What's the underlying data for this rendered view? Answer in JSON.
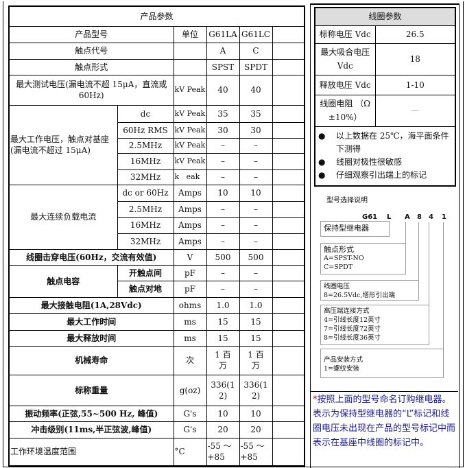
{
  "spec": {
    "title": "产品参数",
    "header": {
      "name": "产品型号",
      "unit": "单位",
      "models": [
        "G61LA",
        "G61LC"
      ]
    },
    "contact_code": {
      "label": "触点代号",
      "values": [
        "A",
        "C"
      ]
    },
    "contact_form": {
      "label": "触点形式",
      "values": [
        "SPST",
        "SPDT"
      ]
    },
    "max_test_voltage": {
      "label": "最大测试电压(漏电流不超 15μA，直流或 60Hz)",
      "unit": "kV Peak",
      "values": [
        "40",
        "40"
      ]
    },
    "max_working_voltage": {
      "label": "最大工作电压，触点对基座(漏电流不超过 15μA)",
      "rows": [
        {
          "cond": "dc",
          "unit": "kV Peak",
          "values": [
            "35",
            "35"
          ]
        },
        {
          "cond": "60Hz RMS",
          "unit": "kV Peak",
          "values": [
            "30",
            "30"
          ]
        },
        {
          "cond": "2.5MHz",
          "unit": "kV Peak",
          "values": [
            "–",
            "–"
          ]
        },
        {
          "cond": "16MHz",
          "unit": "kV Peak",
          "values": [
            "–",
            "–"
          ]
        },
        {
          "cond": "32MHz",
          "unit": "k   eak",
          "values": [
            "–",
            "–"
          ]
        }
      ]
    },
    "max_current": {
      "label": "最大连续负载电流",
      "rows": [
        {
          "cond": "dc or 60Hz",
          "unit": "Amps",
          "values": [
            "10",
            "10"
          ]
        },
        {
          "cond": "2.5MHz",
          "unit": "Amps",
          "values": [
            "–",
            "–"
          ]
        },
        {
          "cond": "16MHz",
          "unit": "Amps",
          "values": [
            "–",
            "–"
          ]
        },
        {
          "cond": "32MHz",
          "unit": "Amps",
          "values": [
            "–",
            "–"
          ]
        }
      ]
    },
    "coil_breakdown": {
      "label": "线圈击穿电压(60Hz，交流有效值)",
      "unit": "V",
      "values": [
        "500",
        "500"
      ]
    },
    "capacitance": {
      "label": "触点电容",
      "rows": [
        {
          "cond": "开触点间",
          "unit": "pF",
          "values": [
            "–",
            "–"
          ]
        },
        {
          "cond": "触点对地",
          "unit": "pF",
          "values": [
            "–",
            "–"
          ]
        }
      ]
    },
    "contact_resistance": {
      "label": "最大接触电阻(1A,28Vdc)",
      "unit": "ohms",
      "values": [
        "1.0",
        "1.0"
      ]
    },
    "operate_time": {
      "label": "最大工作时间",
      "unit": "ms",
      "values": [
        "15",
        "15"
      ]
    },
    "release_time": {
      "label": "最大释放时间",
      "unit": "ms",
      "values": [
        "15",
        "15"
      ]
    },
    "mech_life": {
      "label": "机械寿命",
      "unit": "次",
      "values": [
        "1 百万",
        "1 百万"
      ]
    },
    "weight": {
      "label": "标称重量",
      "unit": "g(oz)",
      "values": [
        "336(12)",
        "336(12)"
      ]
    },
    "vibration": {
      "label": "振动频率(正弦,55~500 Hz, 峰值)",
      "unit": "G's",
      "values": [
        "10",
        "10"
      ]
    },
    "shock": {
      "label": "冲击级别(11ms,半正弦波,峰值)",
      "unit": "G's",
      "values": [
        "20",
        "20"
      ]
    },
    "temp_range": {
      "label": "工作环境温度范围",
      "unit": "°C",
      "values": [
        "-55 ～+85",
        "-55 ～+85"
      ]
    }
  },
  "coil": {
    "title": "线圈参数",
    "rows": [
      {
        "label": "标称电压 Vdc",
        "value": "26.5"
      },
      {
        "label": "最大吸合电压 Vdc",
        "value": "18"
      },
      {
        "label": "释放电压 Vdc",
        "value": "1-10"
      },
      {
        "label": "线圈电阻 （Ω ±10%）",
        "value": "—"
      }
    ],
    "notes": [
      "以上数据在 25℃，海平面条件下测得",
      "线圈对极性很敏感",
      "仔细观察引出端上的标记"
    ]
  },
  "model_guide": {
    "title": "型号选择说明",
    "code": [
      "G61",
      "L",
      "A",
      "8",
      "4",
      "1"
    ],
    "boxes": [
      {
        "title": "保持型继电器",
        "lines": []
      },
      {
        "title": "触点形式",
        "lines": [
          "A=SPST-NO",
          "C=SPDT"
        ]
      },
      {
        "title": "线圈电压",
        "lines": [
          "8=26.5Vdc,塔形引出端"
        ]
      },
      {
        "title": "高压端连接方式",
        "lines": [
          "4=引线长度12英寸",
          "7=引线长度72英寸",
          "8=引线长度36英寸"
        ]
      },
      {
        "title": "产品安装方式",
        "lines": [
          "1=螺纹安装"
        ]
      }
    ]
  },
  "note": {
    "star": "*",
    "text": "按照上面的型号命名订购继电器。表示为保持型继电器的“L”标记和线圈电压未出现在产品的型号标记中而表示在基座中线圈的标记中。"
  }
}
